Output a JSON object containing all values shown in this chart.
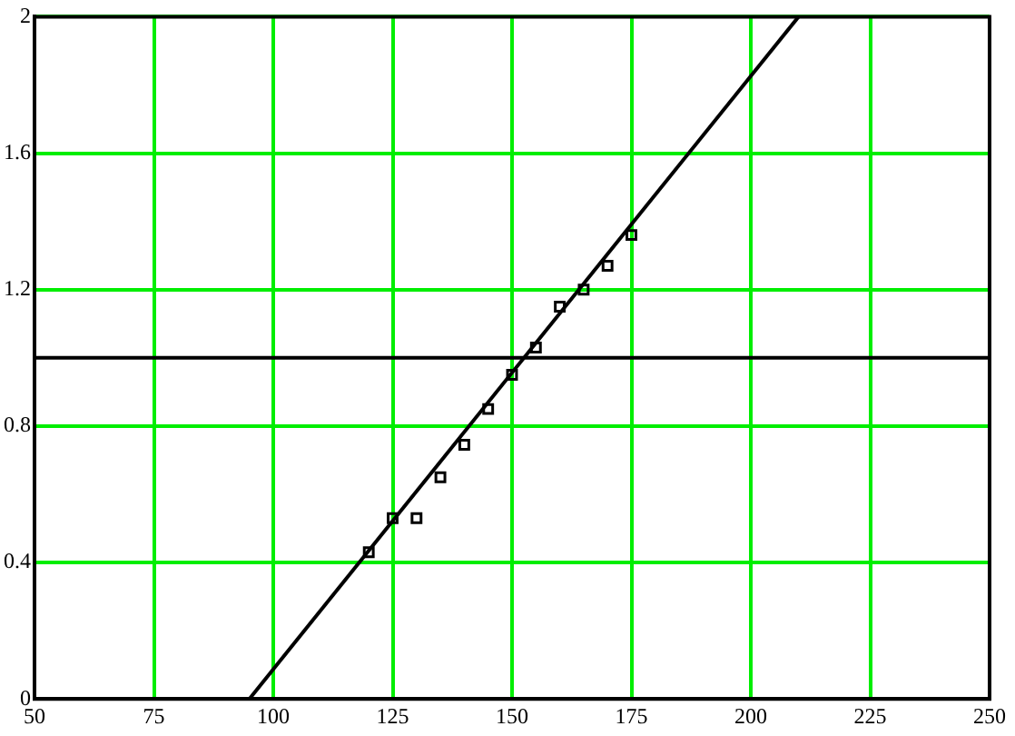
{
  "chart_data": {
    "type": "scatter",
    "xlim": [
      50,
      250
    ],
    "ylim": [
      0,
      2
    ],
    "xticks": [
      50,
      75,
      100,
      125,
      150,
      175,
      200,
      225,
      250
    ],
    "yticks": [
      0,
      0.4,
      0.8,
      1.2,
      1.6,
      2
    ],
    "grid": true,
    "legend": false,
    "marker": "square",
    "series": [
      {
        "color": "#000000",
        "x": [
          120,
          125,
          130,
          135,
          140,
          145,
          150,
          155,
          160,
          165,
          170,
          175
        ],
        "values": [
          0.43,
          0.53,
          0.53,
          0.65,
          0.745,
          0.85,
          0.95,
          1.03,
          1.15,
          1.2,
          1.27,
          1.36
        ]
      },
      {
        "type": "line",
        "marker": "none",
        "color": "#000000",
        "x": [
          95,
          210
        ],
        "values": [
          0,
          2
        ]
      }
    ],
    "ref_lines": [
      {
        "axis": "y",
        "value": 1,
        "color": "#000000"
      }
    ]
  }
}
